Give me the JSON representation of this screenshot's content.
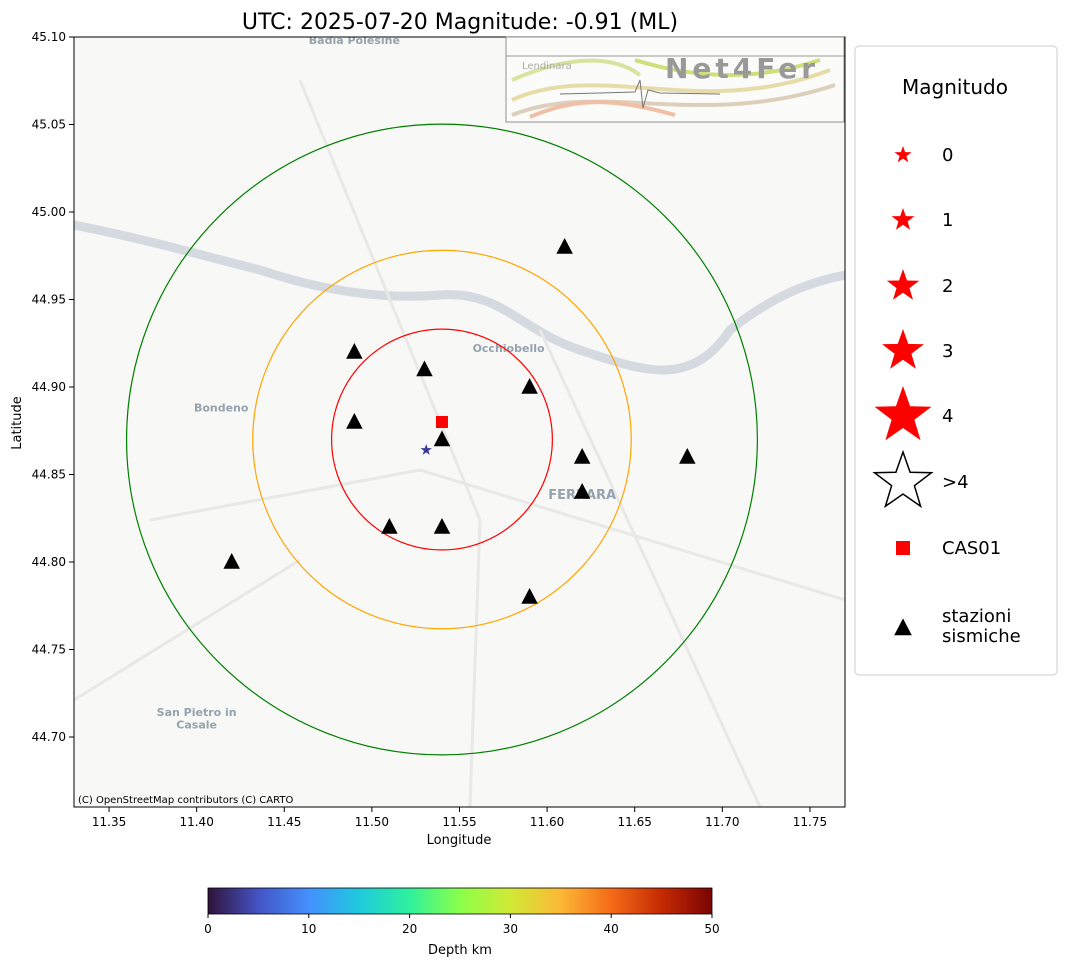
{
  "chart_data": {
    "type": "scatter",
    "title": "UTC: 2025-07-20 Magnitude: -0.91 (ML)",
    "xlabel": "Longitude",
    "ylabel": "Latitude",
    "xlim": [
      11.33,
      11.77
    ],
    "ylim": [
      44.66,
      45.1
    ],
    "xticks": [
      "11.35",
      "11.40",
      "11.45",
      "11.50",
      "11.55",
      "11.60",
      "11.65",
      "11.70",
      "11.75"
    ],
    "yticks": [
      "44.70",
      "44.75",
      "44.80",
      "44.85",
      "44.90",
      "44.95",
      "45.00",
      "45.05",
      "45.10"
    ],
    "grid": false,
    "attribution": "(C) OpenStreetMap contributors (C) CARTO",
    "place_labels": [
      {
        "name": "Badia Polesine",
        "lon": 11.49,
        "lat": 45.096
      },
      {
        "name": "Occhiobello",
        "lon": 11.578,
        "lat": 44.92
      },
      {
        "name": "Bondeno",
        "lon": 11.414,
        "lat": 44.886
      },
      {
        "name": "FERRARA",
        "lon": 11.62,
        "lat": 44.836
      },
      {
        "name": "San Pietro in",
        "lon": 11.4,
        "lat": 44.712
      },
      {
        "name": "Casale",
        "lon": 11.4,
        "lat": 44.705
      }
    ],
    "event": {
      "lon": 11.531,
      "lat": 44.864,
      "magnitude": -0.91,
      "color": "#3b3b9a"
    },
    "reference_station": {
      "name": "CAS01",
      "lon": 11.54,
      "lat": 44.88,
      "color": "#ff0000"
    },
    "stations": [
      {
        "lon": 11.61,
        "lat": 44.98
      },
      {
        "lon": 11.49,
        "lat": 44.92
      },
      {
        "lon": 11.53,
        "lat": 44.91
      },
      {
        "lon": 11.59,
        "lat": 44.9
      },
      {
        "lon": 11.49,
        "lat": 44.88
      },
      {
        "lon": 11.54,
        "lat": 44.87
      },
      {
        "lon": 11.62,
        "lat": 44.86
      },
      {
        "lon": 11.68,
        "lat": 44.86
      },
      {
        "lon": 11.62,
        "lat": 44.84
      },
      {
        "lon": 11.51,
        "lat": 44.82
      },
      {
        "lon": 11.54,
        "lat": 44.82
      },
      {
        "lon": 11.42,
        "lat": 44.8
      },
      {
        "lon": 11.59,
        "lat": 44.78
      }
    ],
    "circles": [
      {
        "center": [
          11.54,
          44.87
        ],
        "radius_deg": 0.063,
        "color": "#ff0000"
      },
      {
        "center": [
          11.54,
          44.87
        ],
        "radius_deg": 0.108,
        "color": "#ffa500"
      },
      {
        "center": [
          11.54,
          44.87
        ],
        "radius_deg": 0.18,
        "color": "#008000"
      }
    ],
    "legend": {
      "title": "Magnitudo",
      "position": "right",
      "items": [
        {
          "label": "0",
          "symbol": "star",
          "color": "#ff0000"
        },
        {
          "label": "1",
          "symbol": "star",
          "color": "#ff0000"
        },
        {
          "label": "2",
          "symbol": "star",
          "color": "#ff0000"
        },
        {
          "label": "3",
          "symbol": "star",
          "color": "#ff0000"
        },
        {
          "label": "4",
          "symbol": "star",
          "color": "#ff0000"
        },
        {
          "label": ">4",
          "symbol": "star-outline",
          "color": "#ffffff"
        },
        {
          "label": "CAS01",
          "symbol": "square",
          "color": "#ff0000"
        },
        {
          "label": "stazioni\nsismiche",
          "symbol": "triangle",
          "color": "#000000"
        }
      ]
    },
    "colorbar": {
      "label": "Depth km",
      "colormap": "turbo",
      "range": [
        0,
        50
      ],
      "ticks": [
        "0",
        "10",
        "20",
        "30",
        "40",
        "50"
      ]
    },
    "logo": {
      "text": "Net4Fer",
      "nearby_label": "Lendinara"
    }
  }
}
